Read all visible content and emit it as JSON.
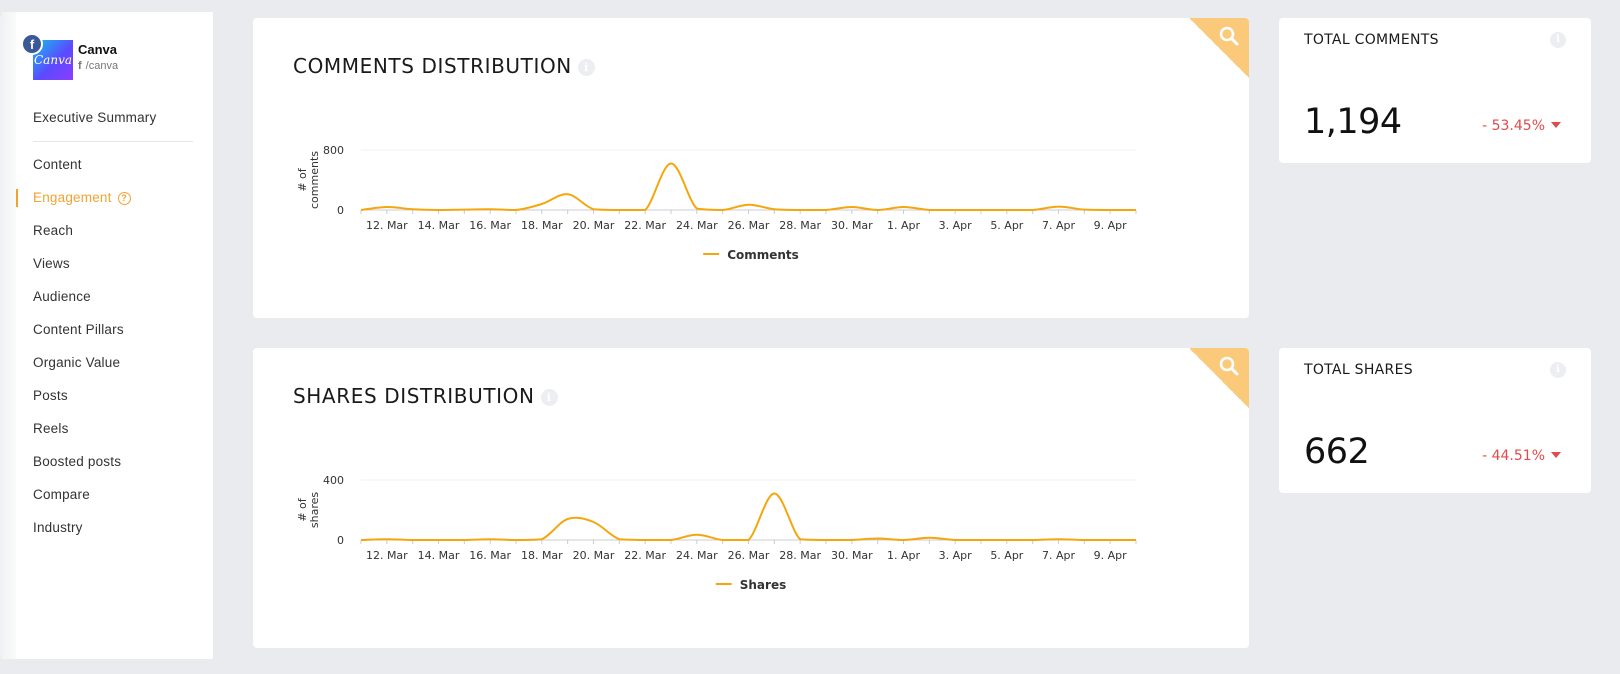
{
  "profile": {
    "name": "Canva",
    "handle": "/canva",
    "avatar_text": "Canva",
    "network_glyph": "f"
  },
  "nav": {
    "items": [
      {
        "label": "Executive Summary"
      },
      {
        "label": "Content"
      },
      {
        "label": "Engagement",
        "active": true
      },
      {
        "label": "Reach"
      },
      {
        "label": "Views"
      },
      {
        "label": "Audience"
      },
      {
        "label": "Content Pillars"
      },
      {
        "label": "Organic Value"
      },
      {
        "label": "Posts"
      },
      {
        "label": "Reels"
      },
      {
        "label": "Boosted posts"
      },
      {
        "label": "Compare"
      },
      {
        "label": "Industry"
      }
    ]
  },
  "colors": {
    "accent": "#f3a230",
    "line": "#f5a60c",
    "negative": "#e14b4b",
    "corner": "#fbc97a"
  },
  "comments_card": {
    "title": "COMMENTS DISTRIBUTION",
    "info_glyph": "i"
  },
  "shares_card": {
    "title": "SHARES DISTRIBUTION",
    "info_glyph": "i"
  },
  "total_comments": {
    "title": "TOTAL COMMENTS",
    "value": "1,194",
    "change": "- 53.45%",
    "info_glyph": "i"
  },
  "total_shares": {
    "title": "TOTAL SHARES",
    "value": "662",
    "change": "- 44.51%",
    "info_glyph": "i"
  },
  "chart_data": [
    {
      "type": "line",
      "ylabel": "# of comments",
      "ylim": [
        0,
        800
      ],
      "yticks": [
        "0",
        "800"
      ],
      "x": [
        "11. Mar",
        "12. Mar",
        "13. Mar",
        "14. Mar",
        "15. Mar",
        "16. Mar",
        "17. Mar",
        "18. Mar",
        "19. Mar",
        "20. Mar",
        "21. Mar",
        "22. Mar",
        "23. Mar",
        "24. Mar",
        "25. Mar",
        "26. Mar",
        "27. Mar",
        "28. Mar",
        "29. Mar",
        "30. Mar",
        "31. Mar",
        "1. Apr",
        "2. Apr",
        "3. Apr",
        "4. Apr",
        "5. Apr",
        "6. Apr",
        "7. Apr",
        "8. Apr",
        "9. Apr",
        "10. Apr"
      ],
      "xticks": [
        "12. Mar",
        "14. Mar",
        "16. Mar",
        "18. Mar",
        "20. Mar",
        "22. Mar",
        "24. Mar",
        "26. Mar",
        "28. Mar",
        "30. Mar",
        "1. Apr",
        "3. Apr",
        "5. Apr",
        "7. Apr",
        "9. Apr"
      ],
      "series": [
        {
          "name": "Comments",
          "values": [
            0,
            40,
            10,
            0,
            5,
            10,
            0,
            80,
            210,
            10,
            0,
            0,
            620,
            20,
            0,
            70,
            10,
            0,
            0,
            40,
            0,
            40,
            0,
            0,
            0,
            0,
            0,
            45,
            5,
            0,
            0
          ]
        }
      ],
      "grid": true,
      "legend": "bottom-center"
    },
    {
      "type": "line",
      "ylabel": "# of shares",
      "ylim": [
        0,
        400
      ],
      "yticks": [
        "0",
        "400"
      ],
      "x": [
        "11. Mar",
        "12. Mar",
        "13. Mar",
        "14. Mar",
        "15. Mar",
        "16. Mar",
        "17. Mar",
        "18. Mar",
        "19. Mar",
        "20. Mar",
        "21. Mar",
        "22. Mar",
        "23. Mar",
        "24. Mar",
        "25. Mar",
        "26. Mar",
        "27. Mar",
        "28. Mar",
        "29. Mar",
        "30. Mar",
        "31. Mar",
        "1. Apr",
        "2. Apr",
        "3. Apr",
        "4. Apr",
        "5. Apr",
        "6. Apr",
        "7. Apr",
        "8. Apr",
        "9. Apr",
        "10. Apr"
      ],
      "xticks": [
        "12. Mar",
        "14. Mar",
        "16. Mar",
        "18. Mar",
        "20. Mar",
        "22. Mar",
        "24. Mar",
        "26. Mar",
        "28. Mar",
        "30. Mar",
        "1. Apr",
        "3. Apr",
        "5. Apr",
        "7. Apr",
        "9. Apr"
      ],
      "series": [
        {
          "name": "Shares",
          "values": [
            0,
            5,
            0,
            0,
            0,
            5,
            0,
            5,
            140,
            120,
            5,
            0,
            0,
            35,
            0,
            0,
            310,
            5,
            0,
            0,
            10,
            0,
            15,
            0,
            0,
            0,
            0,
            5,
            0,
            0,
            0
          ]
        }
      ],
      "grid": true,
      "legend": "bottom-center"
    }
  ]
}
